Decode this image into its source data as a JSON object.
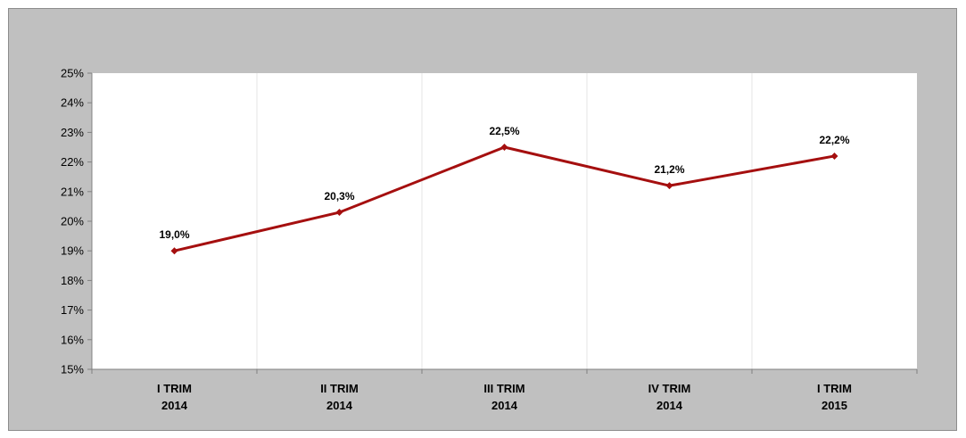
{
  "chart_data": {
    "type": "line",
    "categories": [
      [
        "I TRIM",
        "2014"
      ],
      [
        "II TRIM",
        "2014"
      ],
      [
        "III TRIM",
        "2014"
      ],
      [
        "IV TRIM",
        "2014"
      ],
      [
        "I TRIM",
        "2015"
      ]
    ],
    "series": [
      {
        "values": [
          19.0,
          20.3,
          22.5,
          21.2,
          22.2
        ],
        "color": "#a50f0f",
        "marker": "diamond"
      }
    ],
    "data_labels": [
      "19,0%",
      "20,3%",
      "22,5%",
      "21,2%",
      "22,2%"
    ],
    "y_ticks": [
      "15%",
      "16%",
      "17%",
      "18%",
      "19%",
      "20%",
      "21%",
      "22%",
      "23%",
      "24%",
      "25%"
    ],
    "ylim": [
      15,
      25
    ],
    "grid": "vertical",
    "title": "",
    "xlabel": "",
    "ylabel": "",
    "colors": {
      "frame_background": "#c0c0c0",
      "plot_background": "#ffffff",
      "line": "#a50f0f"
    }
  }
}
